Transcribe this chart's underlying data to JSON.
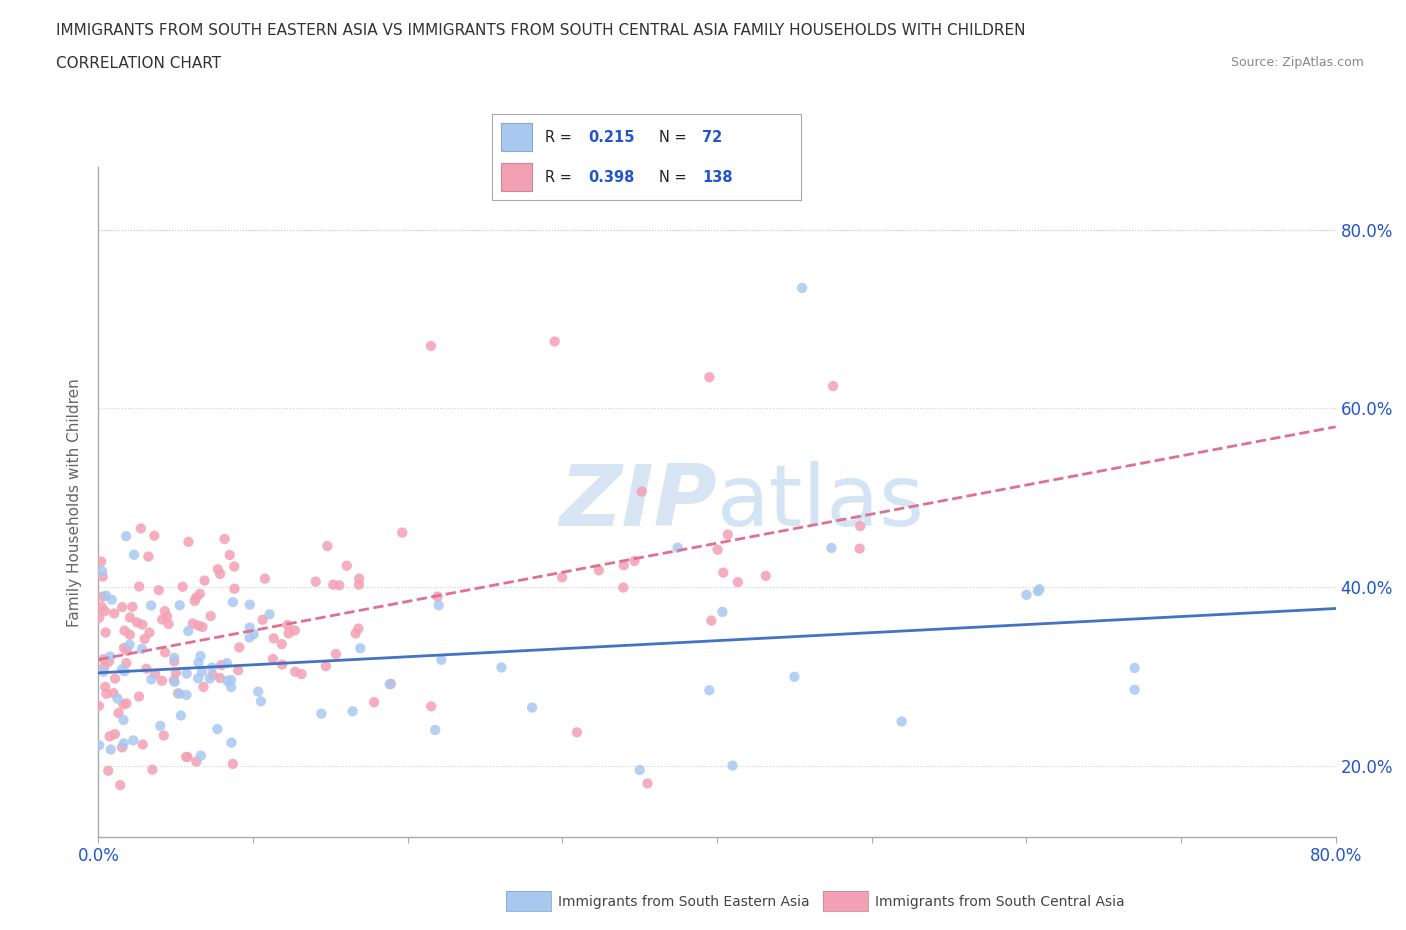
{
  "title_line1": "IMMIGRANTS FROM SOUTH EASTERN ASIA VS IMMIGRANTS FROM SOUTH CENTRAL ASIA FAMILY HOUSEHOLDS WITH CHILDREN",
  "title_line2": "CORRELATION CHART",
  "source": "Source: ZipAtlas.com",
  "ylabel": "Family Households with Children",
  "xlim": [
    0.0,
    0.8
  ],
  "ylim": [
    0.12,
    0.87
  ],
  "x_ticks": [
    0.0,
    0.1,
    0.2,
    0.3,
    0.4,
    0.5,
    0.6,
    0.7,
    0.8
  ],
  "y_ticks": [
    0.2,
    0.4,
    0.6,
    0.8
  ],
  "series1_color": "#a8c8f0",
  "series2_color": "#f4a0b4",
  "line1_color": "#4472c4",
  "line2_color": "#e07090",
  "R1": 0.215,
  "N1": 72,
  "R2": 0.398,
  "N2": 138,
  "label1": "Immigrants from South Eastern Asia",
  "label2": "Immigrants from South Central Asia",
  "background_color": "#ffffff",
  "grid_color": "#cccccc",
  "axis_label_color": "#2255cc"
}
